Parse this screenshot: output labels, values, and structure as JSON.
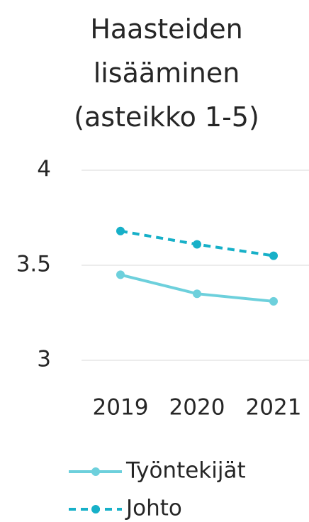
{
  "chart_data": {
    "type": "line",
    "title": "Haasteiden lisääminen (asteikko 1-5)",
    "categories": [
      "2019",
      "2020",
      "2021"
    ],
    "series": [
      {
        "name": "Työntekijät",
        "color": "#6dd0dc",
        "style": "solid",
        "values": [
          3.45,
          3.35,
          3.31
        ]
      },
      {
        "name": "Johto",
        "color": "#17b0c8",
        "style": "dashed",
        "values": [
          3.68,
          3.61,
          3.55
        ]
      }
    ],
    "ylim": [
      3,
      4
    ],
    "yticks": [
      3,
      3.5,
      4
    ],
    "grid": true
  }
}
